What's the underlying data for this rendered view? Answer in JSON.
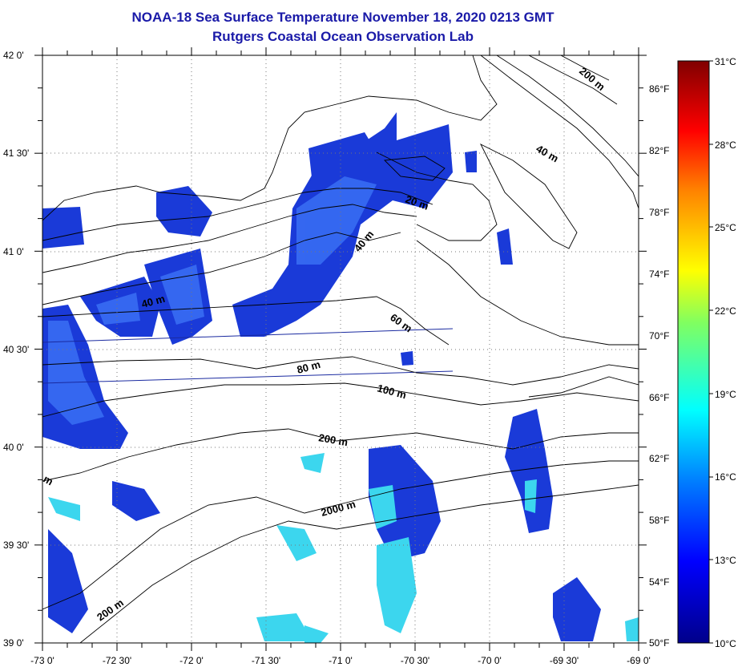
{
  "title": {
    "line1": "NOAA-18 Sea Surface Temperature November 18, 2020 0213 GMT",
    "line2": "Rutgers Coastal Ocean Observation Lab"
  },
  "map": {
    "lat_labels": [
      "42 0'",
      "41 30'",
      "41 0'",
      "40 30'",
      "40 0'",
      "39 30'",
      "39 0'"
    ],
    "lon_labels": [
      "-73 0'",
      "-72 30'",
      "-72 0'",
      "-71 30'",
      "-71 0'",
      "-70 30'",
      "-70 0'",
      "-69 30'",
      "-69 0'"
    ],
    "contour_labels": [
      "200 m",
      "40 m",
      "20 m",
      "40 m",
      "40 m",
      "60 m",
      "80 m",
      "100 m",
      "200 m",
      "2000 m",
      "200 m",
      "m"
    ],
    "colors": {
      "sst_dark": "#1530c8",
      "sst_mid": "#2a5af0",
      "sst_cyan": "#35d8f0",
      "land": "#ffffff"
    }
  },
  "colorbar": {
    "celsius_labels": [
      "31°C",
      "28°C",
      "25°C",
      "22°C",
      "19°C",
      "16°C",
      "13°C",
      "10°C"
    ],
    "fahrenheit_labels": [
      "86°F",
      "82°F",
      "78°F",
      "74°F",
      "70°F",
      "66°F",
      "62°F",
      "58°F",
      "54°F",
      "50°F"
    ],
    "range_c": [
      10,
      31
    ]
  }
}
